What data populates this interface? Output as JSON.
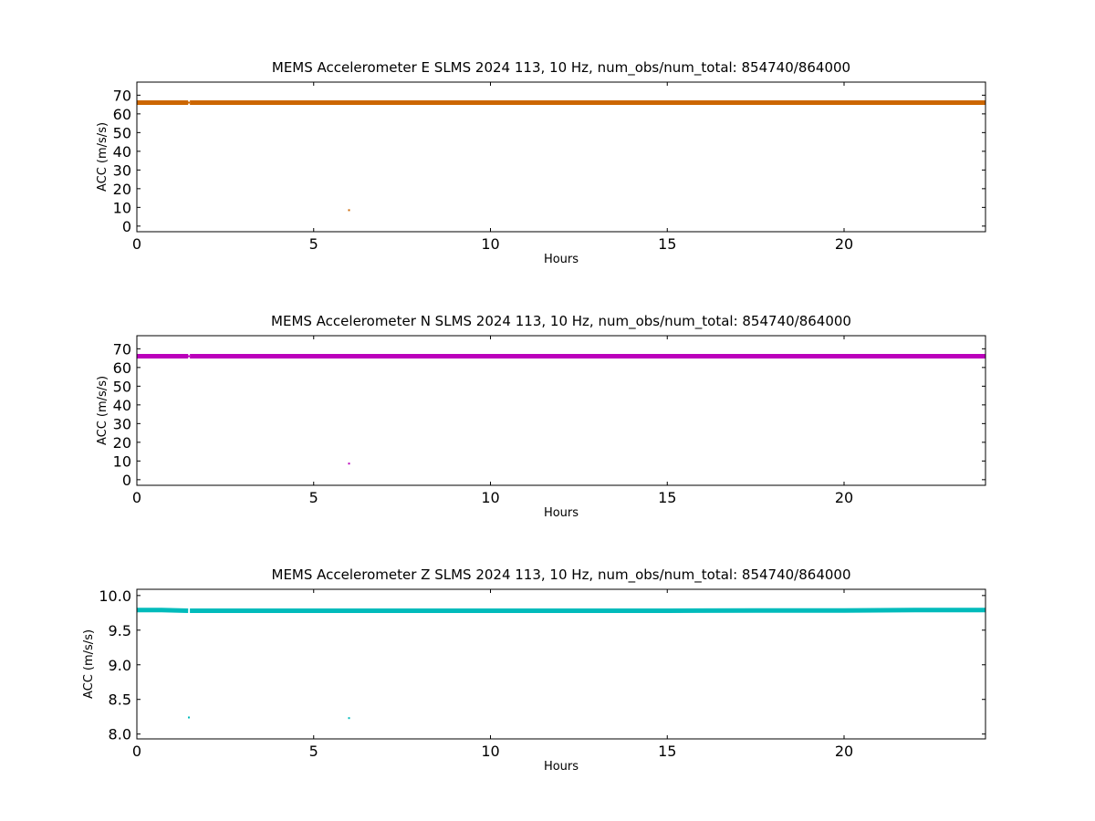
{
  "chart_data": [
    {
      "type": "scatter",
      "title": "MEMS Accelerometer E SLMS 2024 113, 10 Hz, num_obs/num_total: 854740/864000",
      "xlabel": "Hours",
      "ylabel": "ACC (m/s/s)",
      "xlim": [
        0,
        24
      ],
      "ylim": [
        -3,
        77
      ],
      "xticks": [
        0,
        5,
        10,
        15,
        20
      ],
      "yticks": [
        0,
        10,
        20,
        30,
        40,
        50,
        60,
        70
      ],
      "grid": false,
      "color": "#cc6600",
      "series": [
        {
          "x": [
            0,
            1.45
          ],
          "y": [
            66,
            66
          ],
          "style": "band"
        },
        {
          "x": [
            1.5,
            24
          ],
          "y": [
            66,
            66
          ],
          "style": "band"
        },
        {
          "x": [
            1.47
          ],
          "y": [
            66
          ],
          "style": "point"
        },
        {
          "x": [
            6.0
          ],
          "y": [
            8.5
          ],
          "style": "point"
        }
      ]
    },
    {
      "type": "scatter",
      "title": "MEMS Accelerometer N SLMS 2024 113, 10 Hz, num_obs/num_total: 854740/864000",
      "xlabel": "Hours",
      "ylabel": "ACC (m/s/s)",
      "xlim": [
        0,
        24
      ],
      "ylim": [
        -3,
        77
      ],
      "xticks": [
        0,
        5,
        10,
        15,
        20
      ],
      "yticks": [
        0,
        10,
        20,
        30,
        40,
        50,
        60,
        70
      ],
      "grid": false,
      "color": "#bb00bb",
      "series": [
        {
          "x": [
            0,
            1.45
          ],
          "y": [
            66,
            66
          ],
          "style": "band"
        },
        {
          "x": [
            1.5,
            24
          ],
          "y": [
            66,
            66
          ],
          "style": "band"
        },
        {
          "x": [
            1.47
          ],
          "y": [
            66
          ],
          "style": "point"
        },
        {
          "x": [
            6.0
          ],
          "y": [
            8.6
          ],
          "style": "point"
        }
      ]
    },
    {
      "type": "scatter",
      "title": "MEMS Accelerometer Z SLMS 2024 113, 10 Hz, num_obs/num_total: 854740/864000",
      "xlabel": "Hours",
      "ylabel": "ACC (m/s/s)",
      "xlim": [
        0,
        24
      ],
      "ylim": [
        7.93,
        10.09
      ],
      "xticks": [
        0,
        5,
        10,
        15,
        20
      ],
      "yticks": [
        8.0,
        8.5,
        9.0,
        9.5,
        10.0
      ],
      "ytick_labels": [
        "8.0",
        "8.5",
        "9.0",
        "9.5",
        "10.0"
      ],
      "grid": false,
      "color": "#00bbbb",
      "series": [
        {
          "x": [
            0,
            0.7,
            1.45
          ],
          "y": [
            9.79,
            9.79,
            9.78
          ],
          "style": "band"
        },
        {
          "x": [
            1.5,
            5,
            10,
            15,
            17.5,
            20,
            22,
            24
          ],
          "y": [
            9.78,
            9.78,
            9.78,
            9.78,
            9.785,
            9.785,
            9.79,
            9.79
          ],
          "style": "band"
        },
        {
          "x": [
            1.47
          ],
          "y": [
            8.24
          ],
          "style": "point"
        },
        {
          "x": [
            6.0
          ],
          "y": [
            8.23
          ],
          "style": "point"
        }
      ]
    }
  ]
}
